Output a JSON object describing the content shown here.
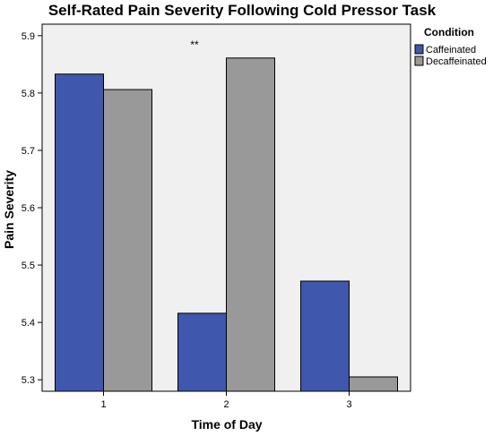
{
  "chart_data": {
    "type": "bar",
    "title": "Self-Rated Pain Severity Following Cold Pressor Task",
    "xlabel": "Time of Day",
    "ylabel": "Pain Severity",
    "categories": [
      "1",
      "2",
      "3"
    ],
    "series": [
      {
        "name": "Caffeinated",
        "color": "#3f57ad",
        "values": [
          5.833,
          5.416,
          5.472
        ]
      },
      {
        "name": "Decaffeinated",
        "color": "#999999",
        "values": [
          5.806,
          5.861,
          5.305
        ]
      }
    ],
    "ylim": [
      5.28,
      5.92
    ],
    "yticks": [
      "5.3",
      "5.4",
      "5.5",
      "5.6",
      "5.7",
      "5.8",
      "5.9"
    ],
    "legend": {
      "title": "Condition",
      "position": "top-right"
    },
    "annotation": "**",
    "grid": false,
    "plot_background": "#f0f0f0"
  }
}
